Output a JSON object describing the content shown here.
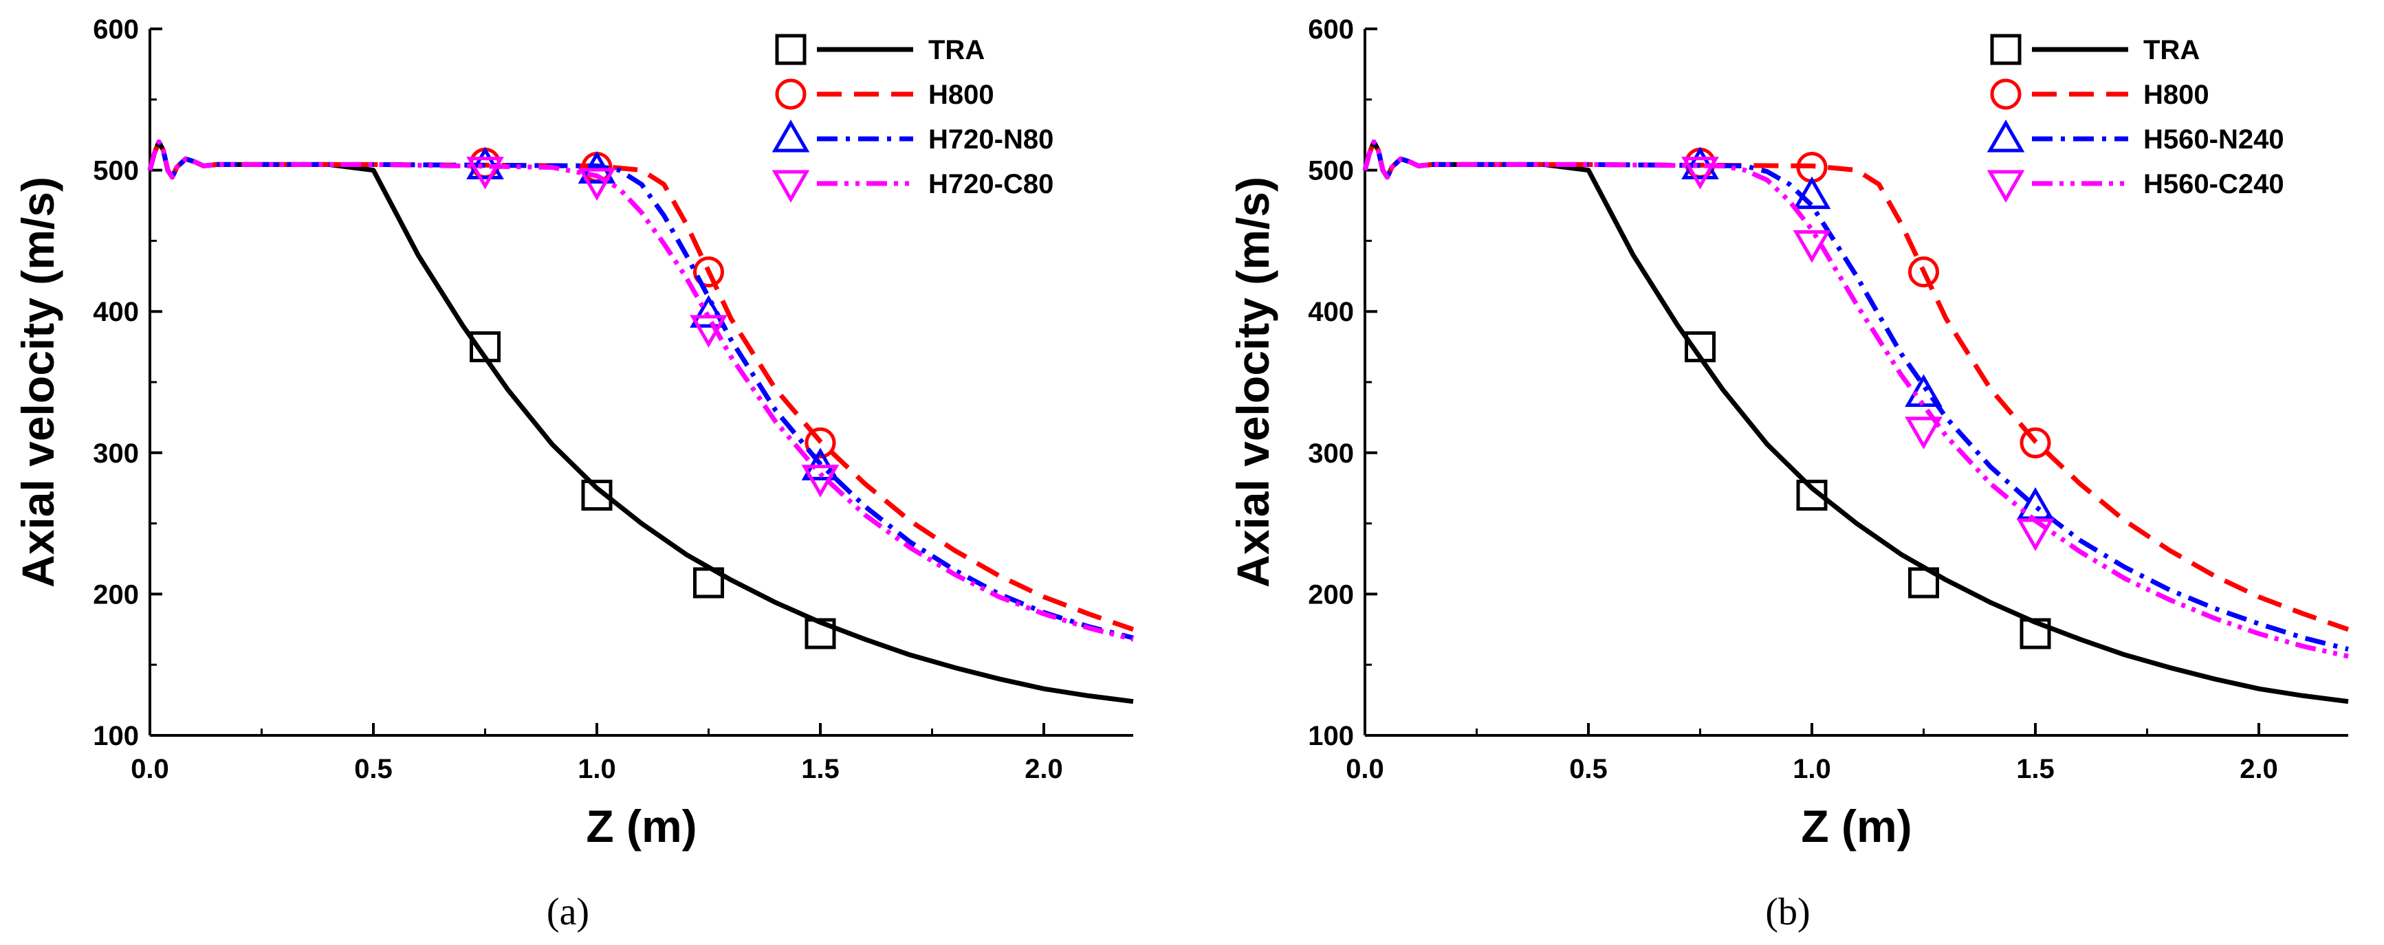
{
  "chart_data": [
    {
      "panel_label": "(a)",
      "type": "line",
      "xlabel": "Z (m)",
      "ylabel": "Axial velocity (m/s)",
      "xlim": [
        0,
        2.2
      ],
      "ylim": [
        100,
        600
      ],
      "xticks": [
        "0.0",
        "0.5",
        "1.0",
        "1.5",
        "2.0"
      ],
      "yticks": [
        "100",
        "200",
        "300",
        "400",
        "500",
        "600"
      ],
      "legend_position": "top-right",
      "series": [
        {
          "name": "TRA",
          "color": "#000000",
          "dash": "solid",
          "marker": "square",
          "marker_color": "#000000",
          "x": [
            0,
            0.01,
            0.02,
            0.03,
            0.04,
            0.05,
            0.06,
            0.08,
            0.1,
            0.12,
            0.15,
            0.2,
            0.3,
            0.4,
            0.5,
            0.55,
            0.6,
            0.7,
            0.8,
            0.9,
            1.0,
            1.1,
            1.2,
            1.3,
            1.4,
            1.5,
            1.6,
            1.7,
            1.8,
            1.9,
            2.0,
            2.1,
            2.2
          ],
          "y": [
            500,
            512,
            520,
            514,
            500,
            495,
            502,
            508,
            506,
            503,
            504,
            504,
            504,
            504,
            500,
            470,
            440,
            390,
            345,
            306,
            275,
            250,
            228,
            210,
            194,
            180,
            168,
            157,
            148,
            140,
            133,
            128,
            124
          ],
          "points": {
            "x": [
              0.75,
              1.0,
              1.25,
              1.5
            ],
            "y": [
              375,
              270,
              208,
              172
            ]
          }
        },
        {
          "name": "H800",
          "color": "#ff0000",
          "dash": "long-dash",
          "marker": "circle",
          "marker_color": "#ff0000",
          "x": [
            0,
            0.01,
            0.02,
            0.03,
            0.04,
            0.05,
            0.06,
            0.08,
            0.1,
            0.12,
            0.15,
            0.2,
            0.5,
            1.0,
            1.1,
            1.15,
            1.2,
            1.3,
            1.4,
            1.5,
            1.6,
            1.7,
            1.8,
            1.9,
            2.0,
            2.1,
            2.2
          ],
          "y": [
            500,
            512,
            520,
            514,
            500,
            495,
            502,
            508,
            506,
            503,
            504,
            504,
            504,
            503,
            500,
            490,
            462,
            395,
            345,
            308,
            278,
            252,
            231,
            213,
            198,
            186,
            175
          ],
          "points": {
            "x": [
              0.75,
              1.0,
              1.25,
              1.5
            ],
            "y": [
              505,
              502,
              428,
              307
            ]
          }
        },
        {
          "name": "H720-N80",
          "color": "#0000ff",
          "dash": "dash-dot",
          "marker": "triangle-up",
          "marker_color": "#0000ff",
          "x": [
            0,
            0.01,
            0.02,
            0.03,
            0.04,
            0.05,
            0.06,
            0.08,
            0.1,
            0.12,
            0.15,
            0.2,
            0.5,
            1.0,
            1.05,
            1.1,
            1.15,
            1.2,
            1.3,
            1.4,
            1.5,
            1.6,
            1.7,
            1.8,
            1.9,
            2.0,
            2.1,
            2.2
          ],
          "y": [
            500,
            512,
            520,
            514,
            500,
            495,
            502,
            508,
            506,
            503,
            504,
            504,
            504,
            503,
            500,
            490,
            468,
            440,
            380,
            330,
            292,
            262,
            237,
            217,
            200,
            187,
            177,
            169
          ],
          "points": {
            "x": [
              0.75,
              1.0,
              1.25,
              1.5
            ],
            "y": [
              503,
              500,
              398,
              290
            ]
          }
        },
        {
          "name": "H720-C80",
          "color": "#ff00ff",
          "dash": "dash-dot-dot",
          "marker": "triangle-down",
          "marker_color": "#ff00ff",
          "x": [
            0,
            0.01,
            0.02,
            0.03,
            0.04,
            0.05,
            0.06,
            0.08,
            0.1,
            0.12,
            0.15,
            0.2,
            0.5,
            0.9,
            1.0,
            1.05,
            1.1,
            1.15,
            1.2,
            1.3,
            1.4,
            1.5,
            1.6,
            1.7,
            1.8,
            1.9,
            2.0,
            2.1,
            2.2
          ],
          "y": [
            500,
            512,
            520,
            514,
            500,
            495,
            502,
            508,
            506,
            503,
            504,
            504,
            504,
            502,
            496,
            487,
            470,
            448,
            424,
            368,
            322,
            285,
            256,
            233,
            214,
            198,
            186,
            176,
            168
          ],
          "points": {
            "x": [
              0.75,
              1.0,
              1.25,
              1.5
            ],
            "y": [
              500,
              492,
              388,
              282
            ]
          }
        }
      ]
    },
    {
      "panel_label": "(b)",
      "type": "line",
      "xlabel": "Z (m)",
      "ylabel": "Axial velocity (m/s)",
      "xlim": [
        0,
        2.2
      ],
      "ylim": [
        100,
        600
      ],
      "xticks": [
        "0.0",
        "0.5",
        "1.0",
        "1.5",
        "2.0"
      ],
      "yticks": [
        "100",
        "200",
        "300",
        "400",
        "500",
        "600"
      ],
      "legend_position": "top-right",
      "series": [
        {
          "name": "TRA",
          "color": "#000000",
          "dash": "solid",
          "marker": "square",
          "marker_color": "#000000",
          "x": [
            0,
            0.01,
            0.02,
            0.03,
            0.04,
            0.05,
            0.06,
            0.08,
            0.1,
            0.12,
            0.15,
            0.2,
            0.3,
            0.4,
            0.5,
            0.55,
            0.6,
            0.7,
            0.8,
            0.9,
            1.0,
            1.1,
            1.2,
            1.3,
            1.4,
            1.5,
            1.6,
            1.7,
            1.8,
            1.9,
            2.0,
            2.1,
            2.2
          ],
          "y": [
            500,
            512,
            520,
            514,
            500,
            495,
            502,
            508,
            506,
            503,
            504,
            504,
            504,
            504,
            500,
            470,
            440,
            390,
            345,
            306,
            275,
            250,
            228,
            210,
            194,
            180,
            168,
            157,
            148,
            140,
            133,
            128,
            124
          ],
          "points": {
            "x": [
              0.75,
              1.0,
              1.25,
              1.5
            ],
            "y": [
              375,
              270,
              208,
              172
            ]
          }
        },
        {
          "name": "H800",
          "color": "#ff0000",
          "dash": "long-dash",
          "marker": "circle",
          "marker_color": "#ff0000",
          "x": [
            0,
            0.01,
            0.02,
            0.03,
            0.04,
            0.05,
            0.06,
            0.08,
            0.1,
            0.12,
            0.15,
            0.2,
            0.5,
            1.0,
            1.1,
            1.15,
            1.2,
            1.3,
            1.4,
            1.5,
            1.6,
            1.7,
            1.8,
            1.9,
            2.0,
            2.1,
            2.2
          ],
          "y": [
            500,
            512,
            520,
            514,
            500,
            495,
            502,
            508,
            506,
            503,
            504,
            504,
            504,
            503,
            500,
            490,
            462,
            395,
            345,
            308,
            278,
            252,
            231,
            213,
            198,
            186,
            175
          ],
          "points": {
            "x": [
              0.75,
              1.0,
              1.25,
              1.5
            ],
            "y": [
              505,
              502,
              428,
              307
            ]
          }
        },
        {
          "name": "H560-N240",
          "color": "#0000ff",
          "dash": "dash-dot",
          "marker": "triangle-up",
          "marker_color": "#0000ff",
          "x": [
            0,
            0.01,
            0.02,
            0.03,
            0.04,
            0.05,
            0.06,
            0.08,
            0.1,
            0.12,
            0.15,
            0.2,
            0.5,
            0.85,
            0.9,
            0.95,
            1.0,
            1.1,
            1.2,
            1.3,
            1.4,
            1.5,
            1.6,
            1.7,
            1.8,
            1.9,
            2.0,
            2.1,
            2.2
          ],
          "y": [
            500,
            512,
            520,
            514,
            500,
            495,
            502,
            508,
            506,
            503,
            504,
            504,
            504,
            503,
            499,
            490,
            475,
            425,
            370,
            325,
            290,
            262,
            238,
            219,
            203,
            190,
            179,
            169,
            161
          ],
          "points": {
            "x": [
              0.75,
              1.0,
              1.25,
              1.5
            ],
            "y": [
              503,
              482,
              342,
              262
            ]
          }
        },
        {
          "name": "H560-C240",
          "color": "#ff00ff",
          "dash": "dash-dot-dot",
          "marker": "triangle-down",
          "marker_color": "#ff00ff",
          "x": [
            0,
            0.01,
            0.02,
            0.03,
            0.04,
            0.05,
            0.06,
            0.08,
            0.1,
            0.12,
            0.15,
            0.2,
            0.5,
            0.8,
            0.85,
            0.9,
            0.95,
            1.0,
            1.1,
            1.2,
            1.3,
            1.4,
            1.5,
            1.6,
            1.7,
            1.8,
            1.9,
            2.0,
            2.1,
            2.2
          ],
          "y": [
            500,
            512,
            520,
            514,
            500,
            495,
            502,
            508,
            506,
            503,
            504,
            504,
            504,
            503,
            500,
            493,
            478,
            458,
            405,
            355,
            312,
            278,
            252,
            230,
            211,
            196,
            183,
            172,
            163,
            156
          ],
          "points": {
            "x": [
              0.75,
              1.0,
              1.25,
              1.5
            ],
            "y": [
              500,
              448,
              316,
              244
            ]
          }
        }
      ]
    }
  ]
}
